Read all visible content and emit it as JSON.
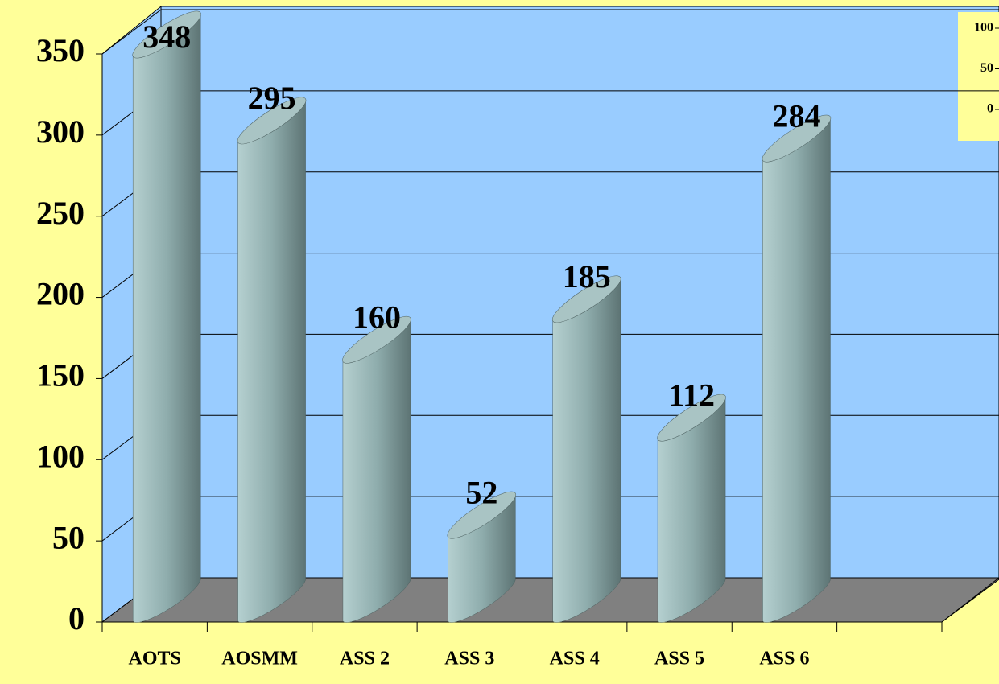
{
  "chart_data": [
    {
      "type": "cylinder",
      "categories": [
        "AOTS",
        "AOSMM",
        "ASS 2",
        "ASS 3",
        "ASS 4",
        "ASS 5",
        "ASS 6",
        null
      ],
      "values": [
        348,
        295,
        160,
        52,
        185,
        112,
        284,
        null
      ],
      "color": "#9ab8b8",
      "ylim": [
        0,
        350
      ],
      "yticks": [
        0,
        50,
        100,
        150,
        200,
        250,
        300,
        350
      ],
      "grid": true
    },
    {
      "type": "inset",
      "ylim": [
        0,
        100
      ],
      "yticks": [
        0,
        50,
        100
      ]
    }
  ]
}
